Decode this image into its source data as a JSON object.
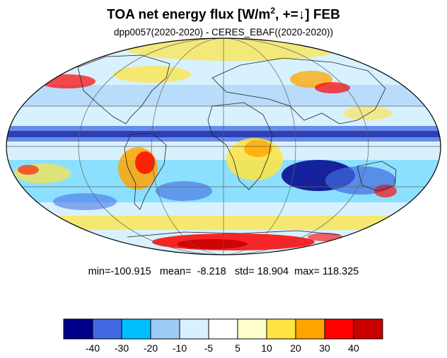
{
  "title": {
    "main": "TOA net energy flux  [W/m",
    "sup": "2",
    "suffix": ", +=↓] FEB"
  },
  "subtitle": "dpp0057(2020-2020) - CERES_EBAF((2020-2020))",
  "stats": {
    "min_label": "min=",
    "min": "-100.915",
    "mean_label": "mean=",
    "mean": "-8.218",
    "std_label": "std=",
    "std": "18.904",
    "max_label": "max=",
    "max": "118.325"
  },
  "colorbar": {
    "colors": [
      "#00008b",
      "#4169e1",
      "#00bfff",
      "#9ecbf5",
      "#d8f1ff",
      "#ffffff",
      "#ffffcc",
      "#ffe442",
      "#ffa500",
      "#ff0000",
      "#c80000"
    ],
    "labels": [
      "-40",
      "-30",
      "-20",
      "-10",
      "-5",
      "5",
      "10",
      "20",
      "30",
      "40"
    ]
  },
  "map": {
    "projection": "Mollweide",
    "background_color": "#d8f1ff",
    "colors": {
      "deep_blue": "#00008b",
      "blue": "#4169e1",
      "sky": "#00bfff",
      "light_blue": "#9ecbf5",
      "pale_blue": "#d8f1ff",
      "white": "#ffffff",
      "pale_yellow": "#ffffcc",
      "yellow": "#ffe442",
      "orange": "#ffa500",
      "red": "#ff0000",
      "dark_red": "#c80000"
    }
  }
}
